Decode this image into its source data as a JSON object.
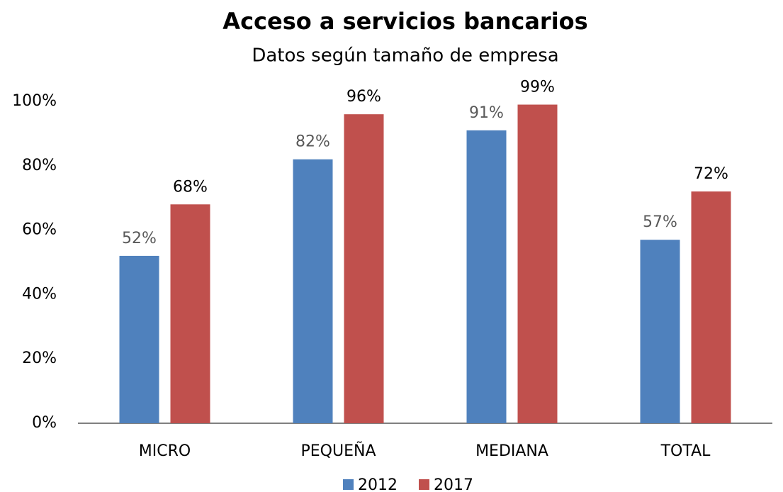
{
  "chart_data": {
    "type": "bar",
    "title": "Acceso a servicios bancarios",
    "subtitle": "Datos según tamaño de empresa",
    "categories": [
      "MICRO",
      "PEQUEÑA",
      "MEDIANA",
      "TOTAL"
    ],
    "series": [
      {
        "name": "2012",
        "color": "#4f81bd",
        "values": [
          52,
          82,
          91,
          57
        ],
        "value_labels": [
          "52%",
          "82%",
          "91%",
          "57%"
        ]
      },
      {
        "name": "2017",
        "color": "#c0504d",
        "values": [
          68,
          96,
          99,
          72
        ],
        "value_labels": [
          "68%",
          "96%",
          "99%",
          "72%"
        ]
      }
    ],
    "ylim": [
      0,
      100
    ],
    "yticks": [
      {
        "value": 0,
        "label": "0%"
      },
      {
        "value": 20,
        "label": "20%"
      },
      {
        "value": 40,
        "label": "40%"
      },
      {
        "value": 60,
        "label": "60%"
      },
      {
        "value": 80,
        "label": "80%"
      },
      {
        "value": 100,
        "label": "100%"
      }
    ],
    "grid": false,
    "legend": "bottom"
  }
}
